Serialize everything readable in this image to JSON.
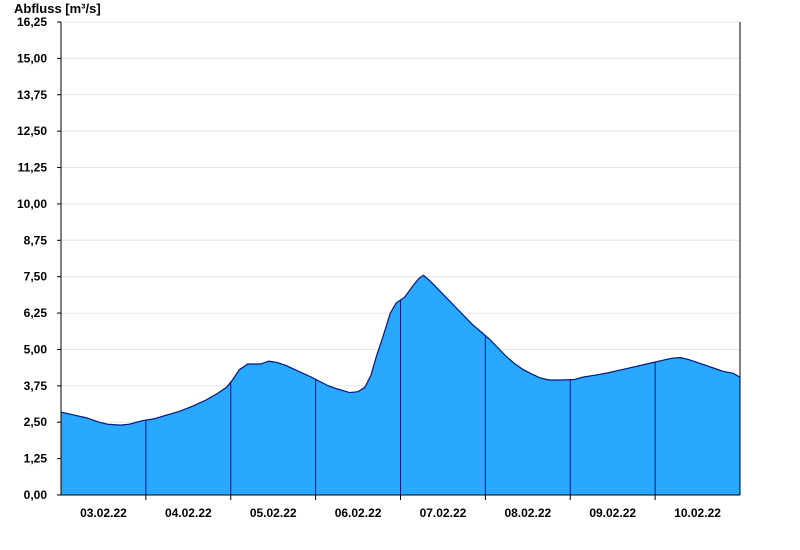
{
  "chart_data": {
    "type": "area",
    "ylabel": "Abfluss [m³/s]",
    "xlabel": "",
    "title": "",
    "ylim": [
      0,
      16.25
    ],
    "yticks": [
      "0,00",
      "1,25",
      "2,50",
      "3,75",
      "5,00",
      "6,25",
      "7,50",
      "8,75",
      "10,00",
      "11,25",
      "12,50",
      "13,75",
      "15,00",
      "16,25"
    ],
    "x_days_range": [
      2.5,
      10.5
    ],
    "day_separators": [
      3.5,
      4.5,
      5.5,
      6.5,
      7.5,
      8.5,
      9.5
    ],
    "xtick_labels": [
      "03.02.22",
      "04.02.22",
      "05.02.22",
      "06.02.22",
      "07.02.22",
      "08.02.22",
      "09.02.22",
      "10.02.22"
    ],
    "grid": true,
    "colors": {
      "fill": "#29a8ff",
      "line": "#00157a",
      "grid": "#e6e6e6",
      "axis": "#000000"
    },
    "points": [
      [
        2.5,
        2.85
      ],
      [
        2.65,
        2.75
      ],
      [
        2.8,
        2.65
      ],
      [
        2.95,
        2.5
      ],
      [
        3.05,
        2.43
      ],
      [
        3.2,
        2.4
      ],
      [
        3.3,
        2.43
      ],
      [
        3.45,
        2.55
      ],
      [
        3.6,
        2.62
      ],
      [
        3.75,
        2.75
      ],
      [
        3.9,
        2.88
      ],
      [
        4.05,
        3.05
      ],
      [
        4.2,
        3.25
      ],
      [
        4.35,
        3.5
      ],
      [
        4.45,
        3.7
      ],
      [
        4.52,
        3.95
      ],
      [
        4.6,
        4.3
      ],
      [
        4.7,
        4.5
      ],
      [
        4.85,
        4.5
      ],
      [
        4.95,
        4.6
      ],
      [
        5.05,
        4.55
      ],
      [
        5.15,
        4.45
      ],
      [
        5.3,
        4.25
      ],
      [
        5.45,
        4.05
      ],
      [
        5.55,
        3.9
      ],
      [
        5.65,
        3.75
      ],
      [
        5.75,
        3.65
      ],
      [
        5.9,
        3.52
      ],
      [
        6.0,
        3.55
      ],
      [
        6.08,
        3.7
      ],
      [
        6.15,
        4.1
      ],
      [
        6.22,
        4.8
      ],
      [
        6.3,
        5.5
      ],
      [
        6.38,
        6.25
      ],
      [
        6.45,
        6.6
      ],
      [
        6.55,
        6.8
      ],
      [
        6.65,
        7.2
      ],
      [
        6.72,
        7.45
      ],
      [
        6.77,
        7.55
      ],
      [
        6.85,
        7.35
      ],
      [
        6.95,
        7.05
      ],
      [
        7.05,
        6.75
      ],
      [
        7.15,
        6.45
      ],
      [
        7.25,
        6.15
      ],
      [
        7.35,
        5.85
      ],
      [
        7.45,
        5.6
      ],
      [
        7.55,
        5.35
      ],
      [
        7.65,
        5.05
      ],
      [
        7.75,
        4.75
      ],
      [
        7.85,
        4.5
      ],
      [
        7.95,
        4.3
      ],
      [
        8.05,
        4.15
      ],
      [
        8.15,
        4.02
      ],
      [
        8.25,
        3.95
      ],
      [
        8.4,
        3.95
      ],
      [
        8.55,
        3.97
      ],
      [
        8.65,
        4.05
      ],
      [
        8.8,
        4.12
      ],
      [
        8.95,
        4.2
      ],
      [
        9.1,
        4.3
      ],
      [
        9.25,
        4.4
      ],
      [
        9.4,
        4.5
      ],
      [
        9.55,
        4.6
      ],
      [
        9.7,
        4.7
      ],
      [
        9.8,
        4.72
      ],
      [
        9.9,
        4.65
      ],
      [
        10.0,
        4.55
      ],
      [
        10.1,
        4.45
      ],
      [
        10.2,
        4.35
      ],
      [
        10.3,
        4.25
      ],
      [
        10.42,
        4.18
      ],
      [
        10.5,
        4.05
      ]
    ]
  }
}
